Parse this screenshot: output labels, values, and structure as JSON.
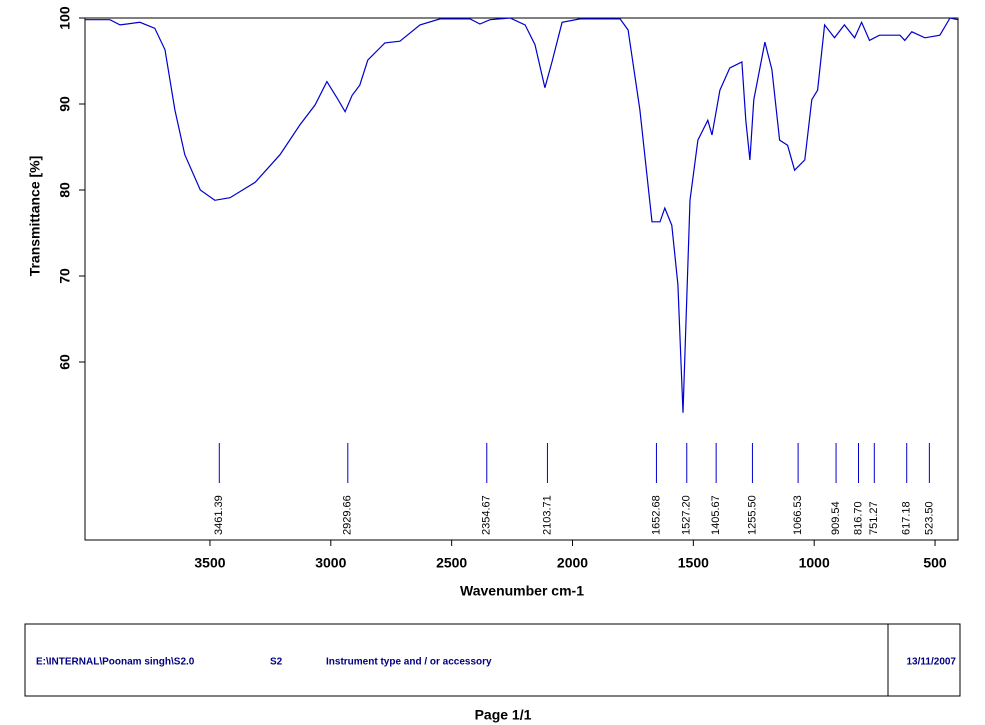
{
  "chart_data": {
    "type": "line",
    "y_label": "Transmittance [%]",
    "x_label": "Wavenumber cm-1",
    "xlim": [
      4017,
      405
    ],
    "ylim": [
      39.3,
      100
    ],
    "xticks": [
      3500,
      3000,
      2500,
      2000,
      1500,
      1000,
      500
    ],
    "yticks": [
      60,
      70,
      80,
      90,
      100
    ],
    "series": [
      {
        "color": "#0000cc",
        "x": [
          4017,
          3914,
          3872,
          3790,
          3728,
          3686,
          3645,
          3604,
          3540,
          3480,
          3417,
          3313,
          3210,
          3127,
          3065,
          3016,
          2974,
          2941,
          2912,
          2880,
          2847,
          2776,
          2714,
          2631,
          2548,
          2424,
          2383,
          2341,
          2258,
          2196,
          2155,
          2114,
          2085,
          2043,
          1969,
          1803,
          1770,
          1721,
          1671,
          1638,
          1618,
          1589,
          1564,
          1543,
          1514,
          1481,
          1440,
          1423,
          1390,
          1349,
          1299,
          1283,
          1266,
          1250,
          1204,
          1175,
          1143,
          1110,
          1081,
          1039,
          1010,
          986,
          957,
          916,
          875,
          833,
          804,
          771,
          730,
          645,
          625,
          596,
          542,
          480,
          438,
          405
        ],
        "values": [
          99.8,
          99.8,
          99.2,
          99.5,
          98.8,
          96.3,
          89.3,
          84.1,
          80,
          78.8,
          79.1,
          80.9,
          84.1,
          87.6,
          89.9,
          92.6,
          90.7,
          89.1,
          91,
          92.2,
          95.1,
          97.1,
          97.3,
          99.2,
          99.9,
          99.9,
          99.3,
          99.8,
          100,
          99.2,
          96.9,
          91.9,
          94.9,
          99.5,
          99.9,
          99.9,
          98.6,
          89.3,
          76.3,
          76.3,
          77.9,
          75.9,
          69,
          54.1,
          78.8,
          85.8,
          88.1,
          86.4,
          91.6,
          94.2,
          94.9,
          88.1,
          83.5,
          90.5,
          97.2,
          94,
          85.8,
          85.2,
          82.3,
          83.5,
          90.5,
          91.6,
          99.2,
          97.7,
          99.2,
          97.7,
          99.5,
          97.4,
          98,
          98,
          97.4,
          98.4,
          97.7,
          98,
          100,
          99.8
        ]
      }
    ],
    "peaks": [
      3461.39,
      2929.66,
      2354.67,
      2103.71,
      1652.68,
      1527.2,
      1405.67,
      1255.5,
      1066.53,
      909.54,
      816.7,
      751.27,
      617.18,
      523.5
    ],
    "peak_labels": [
      "3461.39",
      "2929.66",
      "2354.67",
      "2103.71",
      "1652.68",
      "1527.20",
      "1405.67",
      "1255.50",
      "1066.53",
      "909.54",
      "816.70",
      "751.27",
      "617.18",
      "523.50"
    ]
  },
  "footer": {
    "file": "E:\\INTERNAL\\Poonam singh\\S2.0",
    "sample": "S2",
    "instrument": "Instrument type and / or accessory",
    "date": "13/11/2007",
    "page": "Page 1/1"
  }
}
